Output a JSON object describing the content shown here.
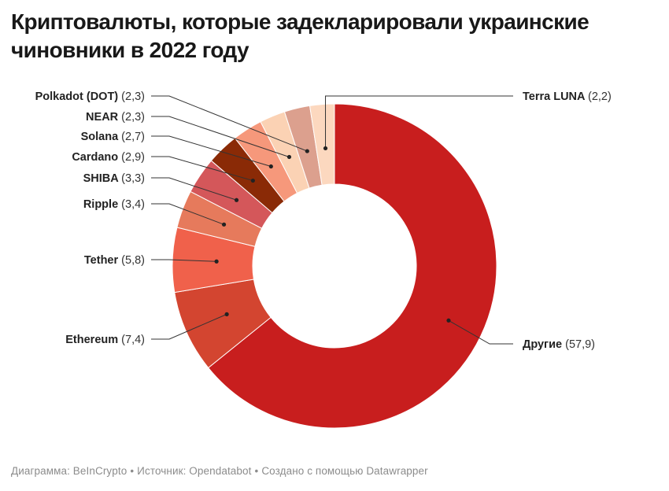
{
  "title": "Криптовалюты, которые задекларировали украинские чиновники в 2022 году",
  "footer": {
    "chart_credit": "Диаграмма: BeInCrypto",
    "source": "Источник: Opendatabot",
    "made_with": "Создано с помощью Datawrapper",
    "separator": "•"
  },
  "chart_data": {
    "type": "pie",
    "variant": "donut",
    "slices": [
      {
        "label": "Другие",
        "value": 57.9,
        "value_text": "(57,9)",
        "color": "#c81e1e"
      },
      {
        "label": "Ethereum",
        "value": 7.4,
        "value_text": "(7,4)",
        "color": "#d34530"
      },
      {
        "label": "Tether",
        "value": 5.8,
        "value_text": "(5,8)",
        "color": "#f0614b"
      },
      {
        "label": "Ripple",
        "value": 3.4,
        "value_text": "(3,4)",
        "color": "#e67a5c"
      },
      {
        "label": "SHIBA",
        "value": 3.3,
        "value_text": "(3,3)",
        "color": "#d4575a"
      },
      {
        "label": "Cardano",
        "value": 2.9,
        "value_text": "(2,9)",
        "color": "#8a2a06"
      },
      {
        "label": "Solana",
        "value": 2.7,
        "value_text": "(2,7)",
        "color": "#f6987b"
      },
      {
        "label": "NEAR",
        "value": 2.3,
        "value_text": "(2,3)",
        "color": "#fbd2b4"
      },
      {
        "label": "Polkadot (DOT)",
        "value": 2.3,
        "value_text": "(2,3)",
        "color": "#dca08e"
      },
      {
        "label": "Terra LUNA",
        "value": 2.2,
        "value_text": "(2,2)",
        "color": "#fcd8bf"
      }
    ]
  }
}
